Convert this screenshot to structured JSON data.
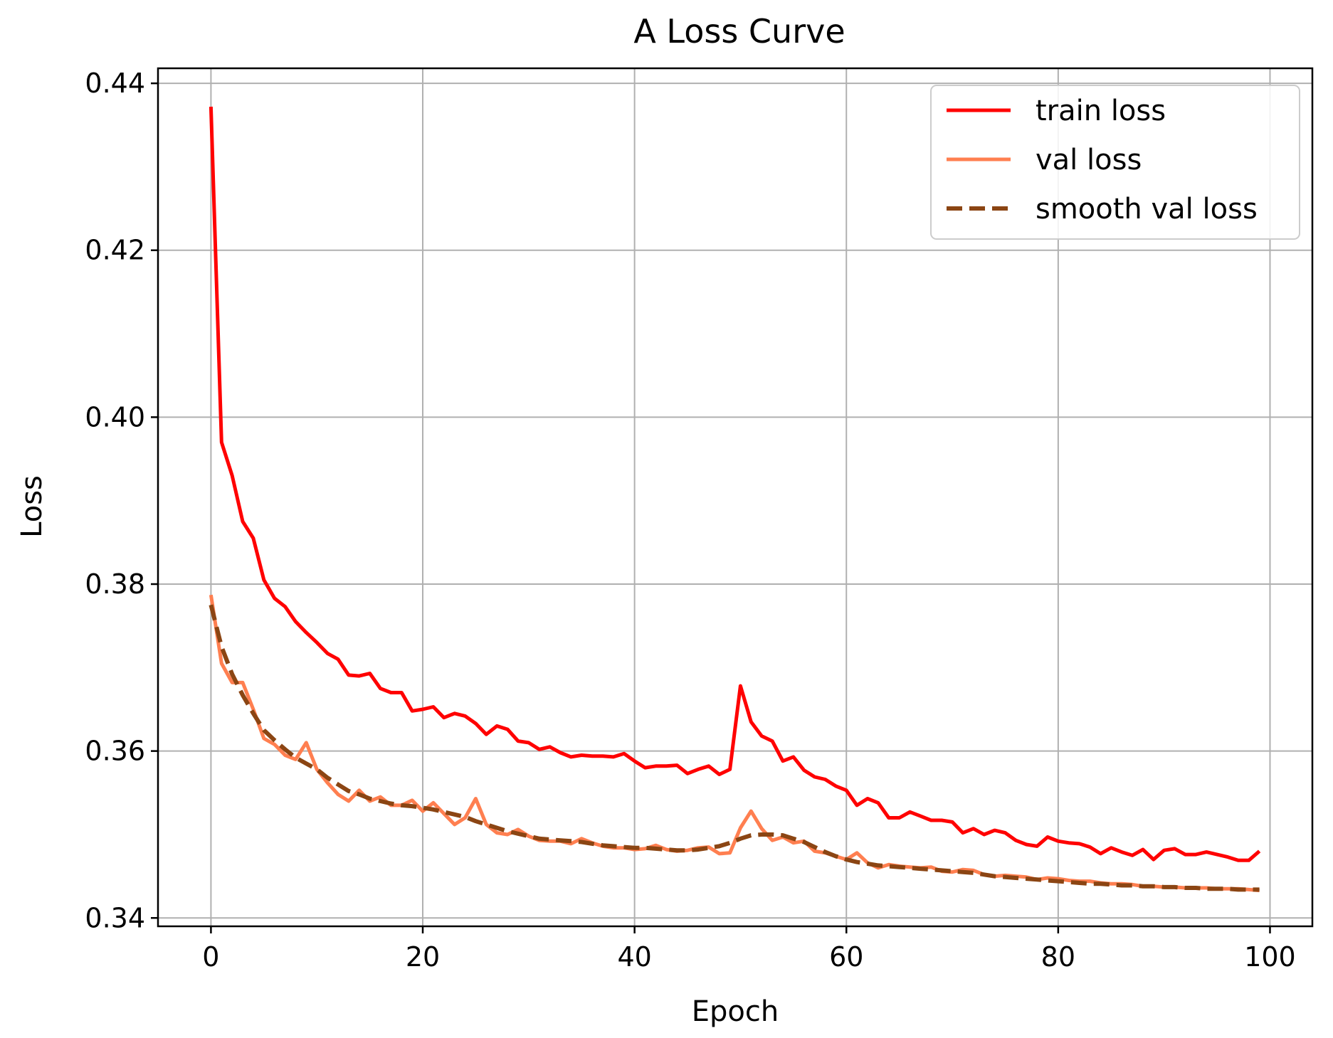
{
  "chart_data": {
    "type": "line",
    "title": "A Loss Curve",
    "xlabel": "Epoch",
    "ylabel": "Loss",
    "xlim": [
      -5,
      104
    ],
    "ylim": [
      0.339,
      0.4418
    ],
    "grid": true,
    "legend_position": "top-right",
    "x_ticks": [
      0,
      20,
      40,
      60,
      80,
      100
    ],
    "x_tick_labels": [
      "0",
      "20",
      "40",
      "60",
      "80",
      "100"
    ],
    "y_ticks": [
      0.34,
      0.36,
      0.38,
      0.4,
      0.42,
      0.44
    ],
    "y_tick_labels": [
      "0.34",
      "0.36",
      "0.38",
      "0.40",
      "0.42",
      "0.44"
    ],
    "x": [
      0,
      1,
      2,
      3,
      4,
      5,
      6,
      7,
      8,
      9,
      10,
      11,
      12,
      13,
      14,
      15,
      16,
      17,
      18,
      19,
      20,
      21,
      22,
      23,
      24,
      25,
      26,
      27,
      28,
      29,
      30,
      31,
      32,
      33,
      34,
      35,
      36,
      37,
      38,
      39,
      40,
      41,
      42,
      43,
      44,
      45,
      46,
      47,
      48,
      49,
      50,
      51,
      52,
      53,
      54,
      55,
      56,
      57,
      58,
      59,
      60,
      61,
      62,
      63,
      64,
      65,
      66,
      67,
      68,
      69,
      70,
      71,
      72,
      73,
      74,
      75,
      76,
      77,
      78,
      79,
      80,
      81,
      82,
      83,
      84,
      85,
      86,
      87,
      88,
      89,
      90,
      91,
      92,
      93,
      94,
      95,
      96,
      97,
      98,
      99
    ],
    "series": [
      {
        "name": "train loss",
        "color": "#ff0000",
        "style": "solid",
        "values": [
          0.4372,
          0.397,
          0.393,
          0.3875,
          0.3855,
          0.3805,
          0.3783,
          0.3773,
          0.3755,
          0.3742,
          0.373,
          0.3717,
          0.371,
          0.3691,
          0.369,
          0.3693,
          0.3675,
          0.367,
          0.367,
          0.3648,
          0.365,
          0.3653,
          0.364,
          0.3645,
          0.3642,
          0.3633,
          0.362,
          0.363,
          0.3626,
          0.3612,
          0.361,
          0.3602,
          0.3605,
          0.3598,
          0.3593,
          0.3595,
          0.3594,
          0.3594,
          0.3593,
          0.3597,
          0.3588,
          0.358,
          0.3582,
          0.3582,
          0.3583,
          0.3573,
          0.3578,
          0.3582,
          0.3572,
          0.3578,
          0.3678,
          0.3635,
          0.3618,
          0.3612,
          0.3588,
          0.3593,
          0.3577,
          0.3569,
          0.3566,
          0.3558,
          0.3553,
          0.3535,
          0.3543,
          0.3538,
          0.352,
          0.352,
          0.3527,
          0.3522,
          0.3517,
          0.3517,
          0.3515,
          0.3502,
          0.3507,
          0.35,
          0.3505,
          0.3502,
          0.3493,
          0.3488,
          0.3486,
          0.3497,
          0.3492,
          0.349,
          0.3489,
          0.3485,
          0.3477,
          0.3484,
          0.3479,
          0.3475,
          0.3482,
          0.347,
          0.3481,
          0.3483,
          0.3476,
          0.3476,
          0.3479,
          0.3476,
          0.3473,
          0.3469,
          0.3469,
          0.348
        ]
      },
      {
        "name": "val loss",
        "color": "#ff7f50",
        "style": "solid",
        "values": [
          0.3787,
          0.3705,
          0.3682,
          0.3682,
          0.365,
          0.3615,
          0.3608,
          0.3595,
          0.359,
          0.361,
          0.3578,
          0.3562,
          0.3548,
          0.354,
          0.3553,
          0.354,
          0.3545,
          0.3535,
          0.3535,
          0.3541,
          0.3528,
          0.3538,
          0.3525,
          0.3512,
          0.352,
          0.3543,
          0.3512,
          0.3502,
          0.35,
          0.3506,
          0.3498,
          0.3493,
          0.3492,
          0.3492,
          0.3489,
          0.3495,
          0.349,
          0.3486,
          0.3484,
          0.3484,
          0.3482,
          0.3483,
          0.3487,
          0.3482,
          0.348,
          0.3481,
          0.3484,
          0.3485,
          0.3477,
          0.3478,
          0.3508,
          0.3528,
          0.3507,
          0.3493,
          0.3497,
          0.349,
          0.3492,
          0.348,
          0.3478,
          0.3474,
          0.347,
          0.3478,
          0.3466,
          0.346,
          0.3464,
          0.3462,
          0.3461,
          0.346,
          0.3461,
          0.3456,
          0.3455,
          0.3458,
          0.3457,
          0.3452,
          0.345,
          0.3451,
          0.345,
          0.3449,
          0.3446,
          0.3448,
          0.3447,
          0.3445,
          0.3444,
          0.3444,
          0.3442,
          0.3441,
          0.3441,
          0.344,
          0.3438,
          0.3438,
          0.3437,
          0.3437,
          0.3436,
          0.3436,
          0.3436,
          0.3435,
          0.3435,
          0.3435,
          0.3434,
          0.3433
        ]
      },
      {
        "name": "smooth val loss",
        "color": "#8b4513",
        "style": "dashed",
        "values": [
          0.3775,
          0.3725,
          0.3692,
          0.3667,
          0.3645,
          0.3625,
          0.3613,
          0.3602,
          0.3592,
          0.3585,
          0.3578,
          0.3568,
          0.356,
          0.3552,
          0.3548,
          0.3543,
          0.354,
          0.3537,
          0.3535,
          0.3534,
          0.3532,
          0.353,
          0.3527,
          0.3524,
          0.3521,
          0.3516,
          0.3512,
          0.3508,
          0.3504,
          0.3501,
          0.3498,
          0.3495,
          0.3494,
          0.3493,
          0.3492,
          0.3491,
          0.3489,
          0.3487,
          0.3486,
          0.3485,
          0.3484,
          0.3484,
          0.3483,
          0.3482,
          0.3481,
          0.3481,
          0.3482,
          0.3484,
          0.3486,
          0.349,
          0.3495,
          0.3499,
          0.35,
          0.35,
          0.3499,
          0.3495,
          0.3491,
          0.3485,
          0.3479,
          0.3474,
          0.347,
          0.3467,
          0.3465,
          0.3463,
          0.3462,
          0.3461,
          0.346,
          0.3459,
          0.3458,
          0.3457,
          0.3456,
          0.3455,
          0.3454,
          0.3452,
          0.345,
          0.3449,
          0.3448,
          0.3447,
          0.3446,
          0.3445,
          0.3444,
          0.3443,
          0.3442,
          0.3441,
          0.3441,
          0.344,
          0.3439,
          0.3439,
          0.3438,
          0.3438,
          0.3437,
          0.3437,
          0.3436,
          0.3436,
          0.3435,
          0.3435,
          0.3435,
          0.3434,
          0.3434,
          0.3434
        ]
      }
    ]
  }
}
